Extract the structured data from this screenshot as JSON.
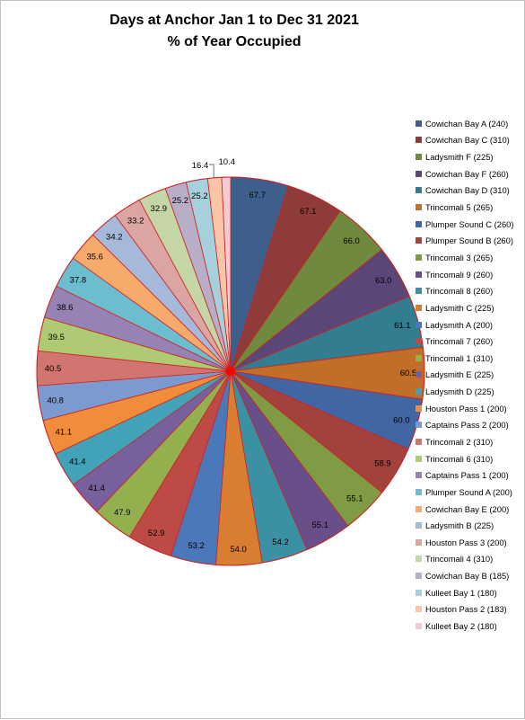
{
  "chart_data": {
    "type": "pie",
    "title_line1": "Days at Anchor Jan 1 to Dec 31 2021",
    "title_line2": "% of Year Occupied",
    "legend_position": "right",
    "slices": [
      {
        "label": "Cowichan Bay A (240)",
        "value": 67.7,
        "color": "#3e5f8c"
      },
      {
        "label": "Cowichan Bay C (310)",
        "value": 67.1,
        "color": "#8e3b39"
      },
      {
        "label": "Ladysmith F (225)",
        "value": 66.0,
        "color": "#6f8a3e"
      },
      {
        "label": "Cowichan Bay F (260)",
        "value": 63.0,
        "color": "#5b4678"
      },
      {
        "label": "Cowichan Bay D (310)",
        "value": 61.1,
        "color": "#327d8f"
      },
      {
        "label": "Trincomali 5 (265)",
        "value": 60.5,
        "color": "#c06e28"
      },
      {
        "label": "Plumper Sound C (260)",
        "value": 60.0,
        "color": "#4067a3"
      },
      {
        "label": "Plumper Sound B (260)",
        "value": 58.9,
        "color": "#a3413d"
      },
      {
        "label": "Trincomali 3 (265)",
        "value": 55.1,
        "color": "#7f9c45"
      },
      {
        "label": "Trincomali 9 (260)",
        "value": 55.1,
        "color": "#684f8a"
      },
      {
        "label": "Trincomali 8 (260)",
        "value": 54.2,
        "color": "#3b90a4"
      },
      {
        "label": "Ladysmith C (225)",
        "value": 54.0,
        "color": "#d97e30"
      },
      {
        "label": "Ladysmith A (200)",
        "value": 53.2,
        "color": "#4a78bb"
      },
      {
        "label": "Trincomali 7 (260)",
        "value": 52.9,
        "color": "#bd4a45"
      },
      {
        "label": "Trincomali 1 (310)",
        "value": 47.9,
        "color": "#93b04f"
      },
      {
        "label": "Ladysmith E (225)",
        "value": 41.4,
        "color": "#77609c"
      },
      {
        "label": "Ladysmith D (225)",
        "value": 41.4,
        "color": "#42a2b8"
      },
      {
        "label": "Houston Pass 1 (200)",
        "value": 41.1,
        "color": "#f08c3a"
      },
      {
        "label": "Captains Pass 2 (200)",
        "value": 40.8,
        "color": "#7b9bd0"
      },
      {
        "label": "Trincomali 2 (310)",
        "value": 40.5,
        "color": "#d27470"
      },
      {
        "label": "Trincomali 6 (310)",
        "value": 39.5,
        "color": "#aecb74"
      },
      {
        "label": "Captains Pass 1 (200)",
        "value": 38.6,
        "color": "#9683b4"
      },
      {
        "label": "Plumper Sound A (200)",
        "value": 37.8,
        "color": "#6dbdd0"
      },
      {
        "label": "Cowichan Bay E (200)",
        "value": 35.6,
        "color": "#f6aa6c"
      },
      {
        "label": "Ladysmith B (225)",
        "value": 34.2,
        "color": "#a7b9db"
      },
      {
        "label": "Houston Pass 3 (200)",
        "value": 33.2,
        "color": "#dba5a3"
      },
      {
        "label": "Trincomali 4 (310)",
        "value": 32.9,
        "color": "#c5d6a6"
      },
      {
        "label": "Cowichan Bay B (185)",
        "value": 25.2,
        "color": "#b9aec8"
      },
      {
        "label": "Kulleet Bay 1 (180)",
        "value": 25.2,
        "color": "#a6d0dc"
      },
      {
        "label": "Houston Pass 2 (183)",
        "value": 16.4,
        "color": "#f9c4a8"
      },
      {
        "label": "Kulleet Bay 2 (180)",
        "value": 10.4,
        "color": "#f4cbd0"
      }
    ],
    "label_format": "one-decimal",
    "center_marker_color": "#ff0000",
    "slice_border_color": "#cc2222"
  }
}
